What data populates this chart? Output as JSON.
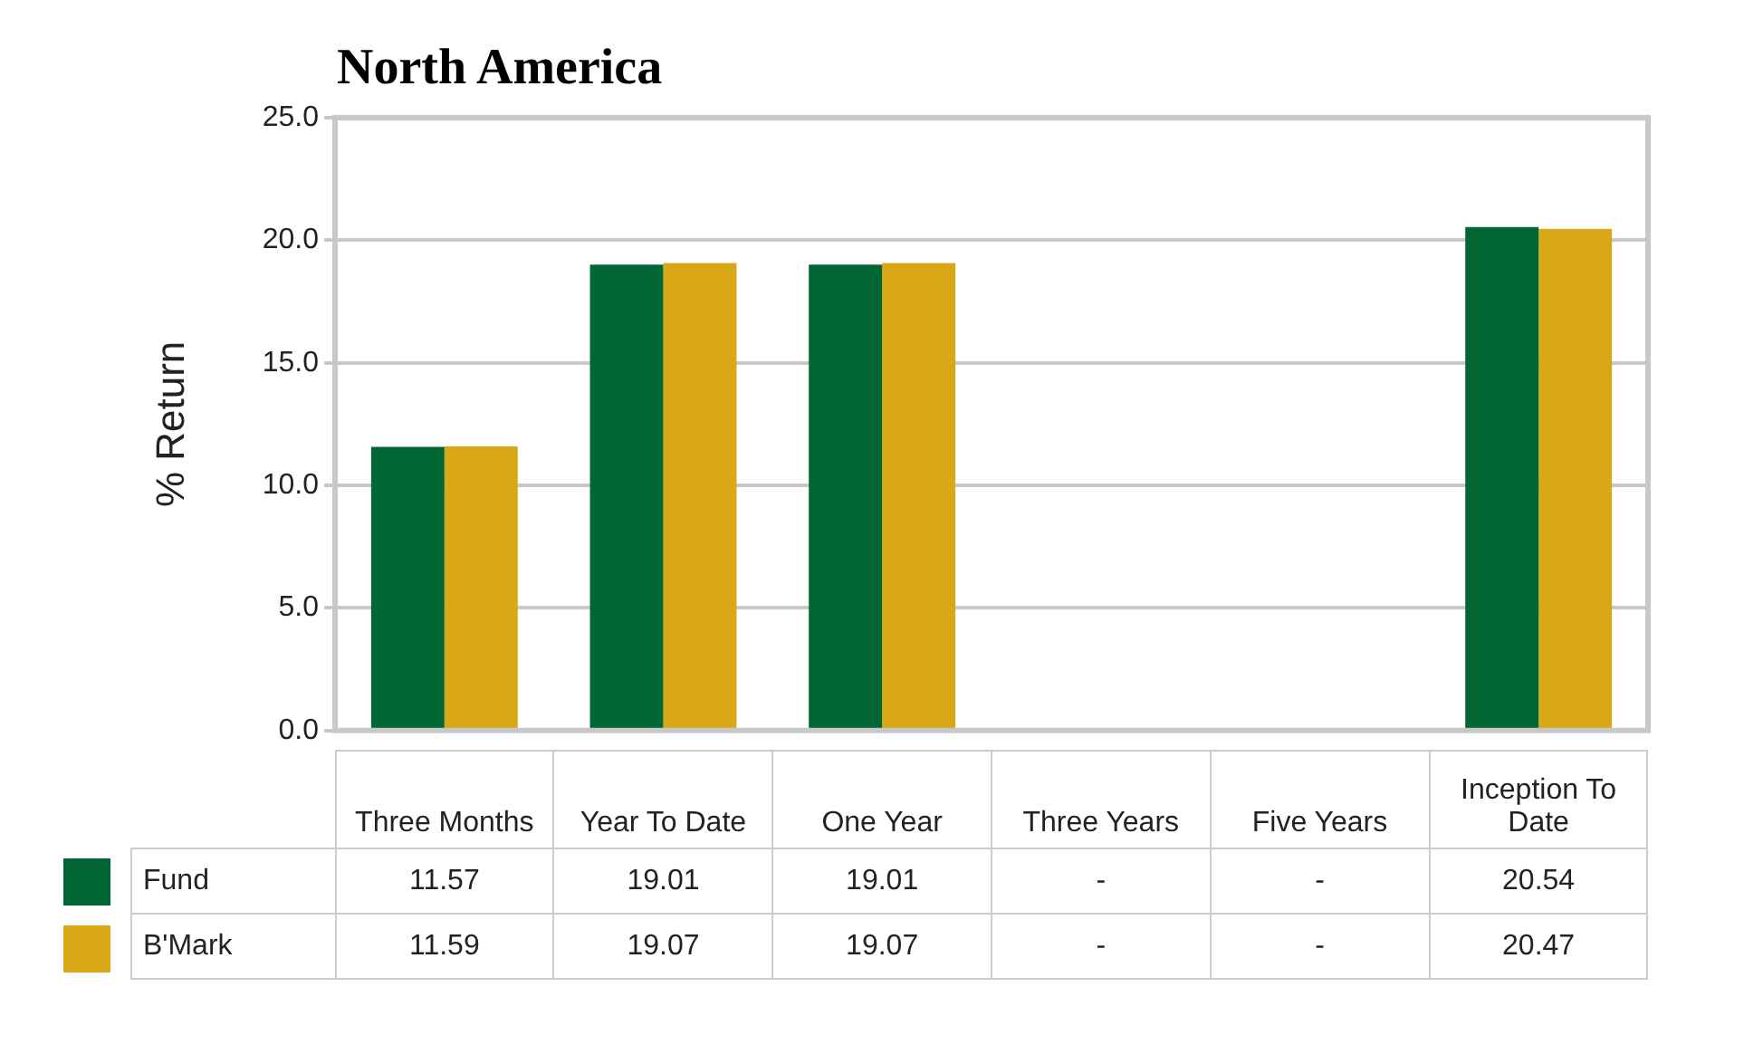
{
  "chart_data": {
    "type": "bar",
    "title": "North America",
    "ylabel": "% Return",
    "categories": [
      "Three Months",
      "Year To Date",
      "One Year",
      "Three Years",
      "Five Years",
      "Inception To Date"
    ],
    "series": [
      {
        "name": "Fund",
        "color": "#006633",
        "values": [
          11.57,
          19.01,
          19.01,
          null,
          null,
          20.54
        ],
        "value_labels": [
          "11.57",
          "19.01",
          "19.01",
          "-",
          "-",
          "20.54"
        ]
      },
      {
        "name": "B'Mark",
        "color": "#d9a816",
        "values": [
          11.59,
          19.07,
          19.07,
          null,
          null,
          20.47
        ],
        "value_labels": [
          "11.59",
          "19.07",
          "19.07",
          "-",
          "-",
          "20.47"
        ]
      }
    ],
    "ylim": [
      0,
      25
    ],
    "yticks": [
      {
        "value": 0,
        "label": "0.0"
      },
      {
        "value": 5,
        "label": "5.0"
      },
      {
        "value": 10,
        "label": "10.0"
      },
      {
        "value": 15,
        "label": "15.0"
      },
      {
        "value": 20,
        "label": "20.0"
      },
      {
        "value": 25,
        "label": "25.0"
      }
    ],
    "grid": "y",
    "legend": "bottom left"
  }
}
